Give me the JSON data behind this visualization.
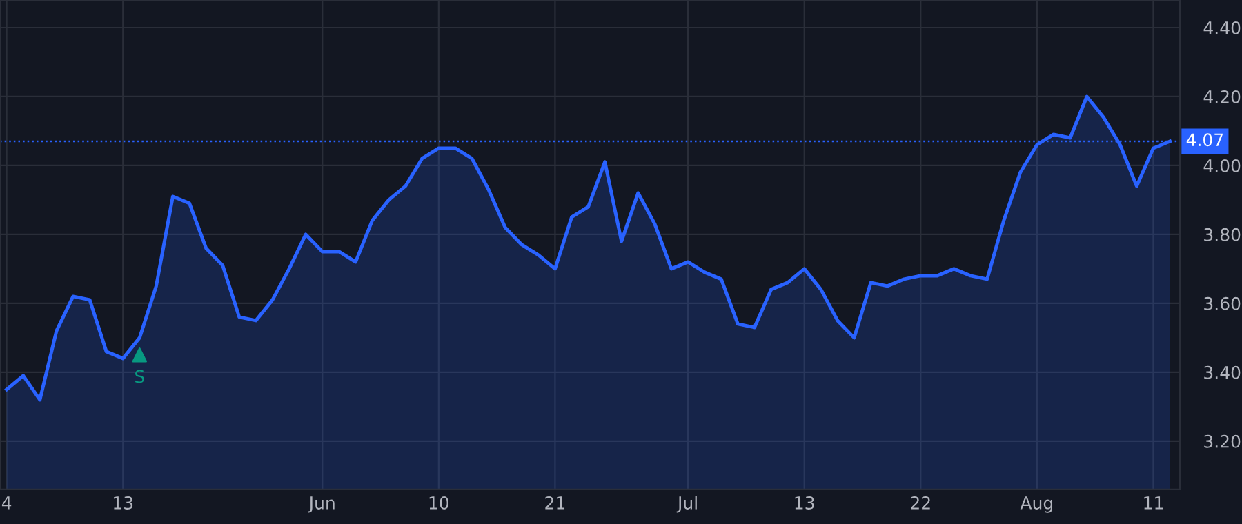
{
  "chart_data": {
    "type": "area",
    "categories": [
      "4",
      null,
      null,
      null,
      null,
      null,
      null,
      "13",
      null,
      null,
      null,
      null,
      null,
      null,
      null,
      null,
      null,
      null,
      null,
      "Jun",
      null,
      null,
      null,
      null,
      null,
      null,
      "10",
      null,
      null,
      null,
      null,
      null,
      null,
      "21",
      null,
      null,
      null,
      null,
      null,
      null,
      null,
      "Jul",
      null,
      null,
      null,
      null,
      null,
      null,
      "13",
      null,
      null,
      null,
      null,
      null,
      null,
      "22",
      null,
      null,
      null,
      null,
      null,
      null,
      "Aug",
      null,
      null,
      null,
      null,
      null,
      null,
      "11",
      null
    ],
    "series": [
      {
        "color": "#2962ff",
        "values": [
          3.35,
          3.39,
          3.32,
          3.52,
          3.62,
          3.61,
          3.46,
          3.44,
          3.5,
          3.65,
          3.91,
          3.89,
          3.76,
          3.71,
          3.56,
          3.55,
          3.61,
          3.7,
          3.8,
          3.75,
          3.75,
          3.72,
          3.84,
          3.9,
          3.94,
          4.02,
          4.05,
          4.05,
          4.02,
          3.93,
          3.82,
          3.77,
          3.74,
          3.7,
          3.85,
          3.88,
          4.01,
          3.78,
          3.92,
          3.83,
          3.7,
          3.72,
          3.69,
          3.67,
          3.54,
          3.53,
          3.64,
          3.66,
          3.7,
          3.64,
          3.55,
          3.5,
          3.66,
          3.65,
          3.67,
          3.68,
          3.68,
          3.7,
          3.68,
          3.67,
          3.84,
          3.98,
          4.06,
          4.09,
          4.08,
          4.2,
          4.14,
          4.06,
          3.94,
          4.05,
          4.07
        ]
      },
      {
        "type": "scatter",
        "color": "#089981",
        "marker": "triangle",
        "values": [
          null,
          null,
          null,
          null,
          null,
          null,
          null,
          null,
          3.45,
          null,
          null,
          null,
          null,
          null,
          null,
          null,
          null,
          null,
          null,
          null,
          null,
          null,
          null,
          null,
          null,
          null,
          null,
          null,
          null,
          null,
          null,
          null,
          null,
          null,
          null,
          null,
          null,
          null,
          null,
          null,
          null,
          null,
          null,
          null,
          null,
          null,
          null,
          null,
          null,
          null,
          null,
          null,
          null,
          null,
          null,
          null,
          null,
          null,
          null,
          null,
          null,
          null,
          null,
          null,
          null,
          null,
          null,
          null,
          null,
          null,
          null
        ]
      }
    ],
    "annotations": [
      "S"
    ],
    "ylim": [
      3.06,
      4.48
    ],
    "yticks": [
      {
        "value": 3.2,
        "label": "3.20"
      },
      {
        "value": 3.4,
        "label": "3.40"
      },
      {
        "value": 3.6,
        "label": "3.60"
      },
      {
        "value": 3.8,
        "label": "3.80"
      },
      {
        "value": 4.0,
        "label": "4.00"
      },
      {
        "value": 4.2,
        "label": "4.20"
      },
      {
        "value": 4.4,
        "label": "4.40"
      }
    ],
    "ref_lines": [
      {
        "axis": "y",
        "value": 4.07,
        "label": "4.07",
        "color": "#2962ff",
        "line_style": "dotted"
      }
    ],
    "grid": true,
    "legend": false
  }
}
